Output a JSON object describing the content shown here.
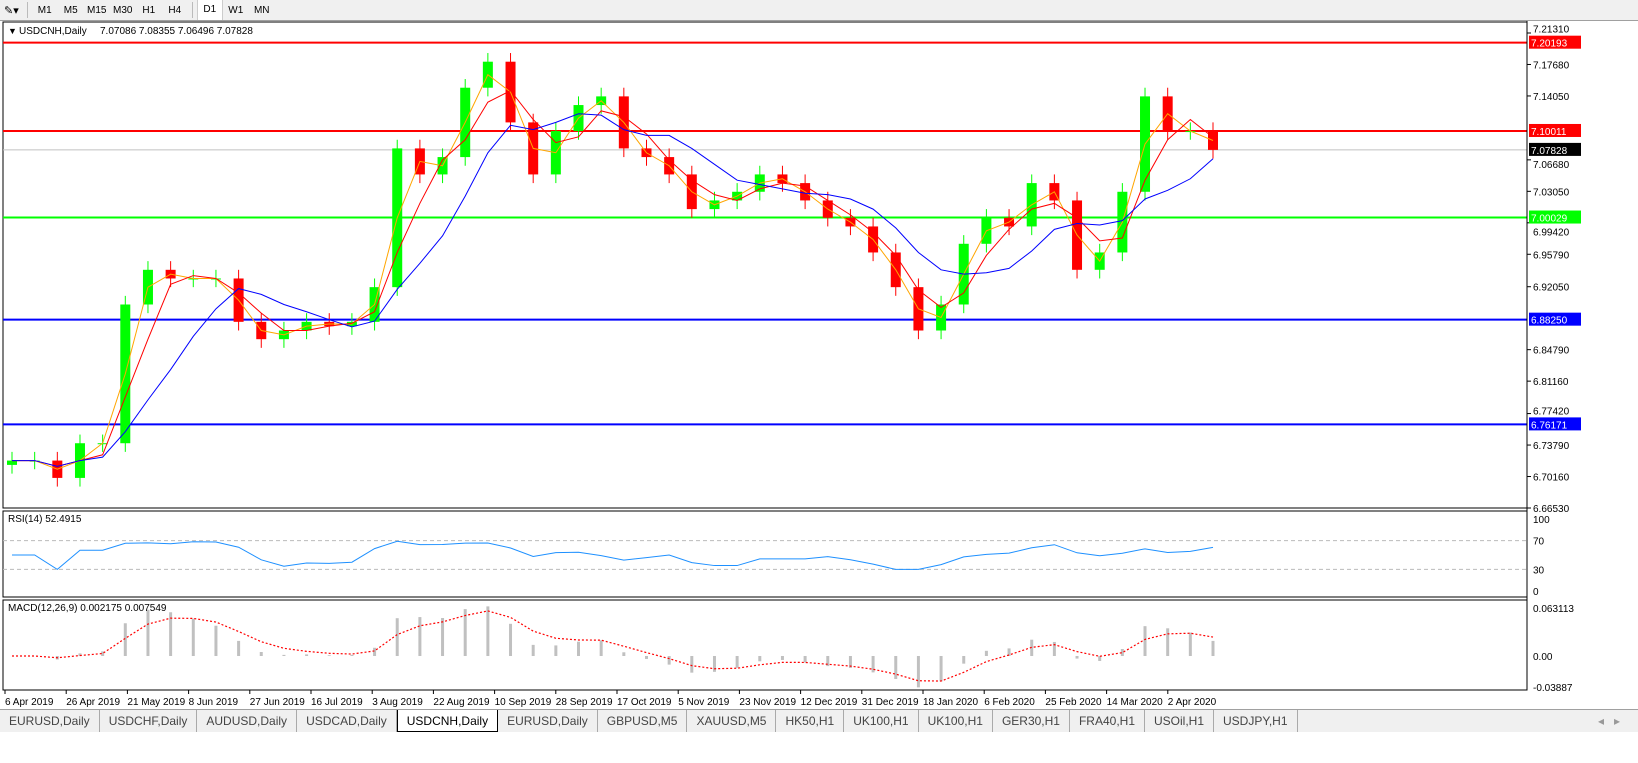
{
  "toolbar": {
    "timeframes": [
      "M1",
      "M5",
      "M15",
      "M30",
      "H1",
      "H4",
      "D1",
      "W1",
      "MN"
    ],
    "active": "D1"
  },
  "main_panel": {
    "title": "USDCNH,Daily",
    "ohlc": "7.07086 7.08355 7.06496 7.07828"
  },
  "rsi_panel": {
    "title": "RSI(14) 52.4915",
    "axis": [
      "100",
      "70",
      "30",
      "0"
    ]
  },
  "macd_panel": {
    "title": "MACD(12,26,9) 0.002175 0.007549",
    "axis": [
      "0.063113",
      "0.00",
      "-0.03887"
    ]
  },
  "price_axis": [
    "7.21310",
    "7.17680",
    "7.14050",
    "7.06680",
    "7.03050",
    "6.99420",
    "6.95790",
    "6.92050",
    "6.84790",
    "6.81160",
    "6.77420",
    "6.73790",
    "6.70160",
    "6.66530"
  ],
  "levels": [
    {
      "price": "7.20193",
      "color": "#ff0000"
    },
    {
      "price": "7.10011",
      "color": "#ff0000"
    },
    {
      "price": "7.07828",
      "color": "#c0c0c0",
      "label_color": "#000000"
    },
    {
      "price": "7.00029",
      "color": "#00ff00"
    },
    {
      "price": "6.88250",
      "color": "#0000ff"
    },
    {
      "price": "6.76171",
      "color": "#0000ff"
    }
  ],
  "date_axis": [
    "6 Apr 2019",
    "26 Apr 2019",
    "21 May 2019",
    "8 Jun 2019",
    "27 Jun 2019",
    "16 Jul 2019",
    "3 Aug 2019",
    "22 Aug 2019",
    "10 Sep 2019",
    "28 Sep 2019",
    "17 Oct 2019",
    "5 Nov 2019",
    "23 Nov 2019",
    "12 Dec 2019",
    "31 Dec 2019",
    "18 Jan 2020",
    "6 Feb 2020",
    "25 Feb 2020",
    "14 Mar 2020",
    "2 Apr 2020"
  ],
  "tabs": [
    "EURUSD,Daily",
    "USDCHF,Daily",
    "AUDUSD,Daily",
    "USDCAD,Daily",
    "USDCNH,Daily",
    "EURUSD,Daily",
    "GBPUSD,M5",
    "XAUUSD,M5",
    "HK50,H1",
    "UK100,H1",
    "UK100,H1",
    "GER30,H1",
    "FRA40,H1",
    "USOil,H1",
    "USDJPY,H1"
  ],
  "active_tab": 4,
  "chart_data": {
    "type": "candlestick",
    "title": "USDCNH,Daily",
    "ylim": [
      6.6653,
      7.2131
    ],
    "colors": {
      "up": "#00ff00",
      "down": "#ff0000",
      "ma_fast": "#ff0000",
      "ma_slow": "#0000ff",
      "ma_fastest": "#ffa500",
      "rsi": "#1e90ff",
      "macd_hist": "#c0c0c0",
      "macd_signal": "#ff0000"
    },
    "x": [
      "2019-04-08",
      "2019-04-15",
      "2019-04-22",
      "2019-04-29",
      "2019-05-06",
      "2019-05-13",
      "2019-05-20",
      "2019-05-27",
      "2019-06-03",
      "2019-06-10",
      "2019-06-17",
      "2019-06-24",
      "2019-07-01",
      "2019-07-08",
      "2019-07-15",
      "2019-07-22",
      "2019-07-29",
      "2019-08-05",
      "2019-08-12",
      "2019-08-19",
      "2019-08-26",
      "2019-09-02",
      "2019-09-09",
      "2019-09-16",
      "2019-09-23",
      "2019-09-30",
      "2019-10-07",
      "2019-10-14",
      "2019-10-21",
      "2019-10-28",
      "2019-11-04",
      "2019-11-11",
      "2019-11-18",
      "2019-11-25",
      "2019-12-02",
      "2019-12-09",
      "2019-12-16",
      "2019-12-23",
      "2019-12-30",
      "2020-01-06",
      "2020-01-13",
      "2020-01-20",
      "2020-01-27",
      "2020-02-03",
      "2020-02-10",
      "2020-02-17",
      "2020-02-24",
      "2020-03-02",
      "2020-03-09",
      "2020-03-16",
      "2020-03-23",
      "2020-03-30",
      "2020-04-06",
      "2020-04-13"
    ],
    "close": [
      6.72,
      6.72,
      6.7,
      6.74,
      6.74,
      6.9,
      6.94,
      6.93,
      6.93,
      6.93,
      6.88,
      6.86,
      6.87,
      6.88,
      6.875,
      6.88,
      6.92,
      7.08,
      7.05,
      7.07,
      7.15,
      7.18,
      7.11,
      7.05,
      7.1,
      7.13,
      7.14,
      7.08,
      7.07,
      7.05,
      7.01,
      7.02,
      7.03,
      7.05,
      7.04,
      7.02,
      7.0,
      6.99,
      6.96,
      6.92,
      6.87,
      6.9,
      6.97,
      7.0,
      6.99,
      7.04,
      7.02,
      6.94,
      6.96,
      7.03,
      7.14,
      7.1,
      7.1,
      7.07828
    ]
  }
}
